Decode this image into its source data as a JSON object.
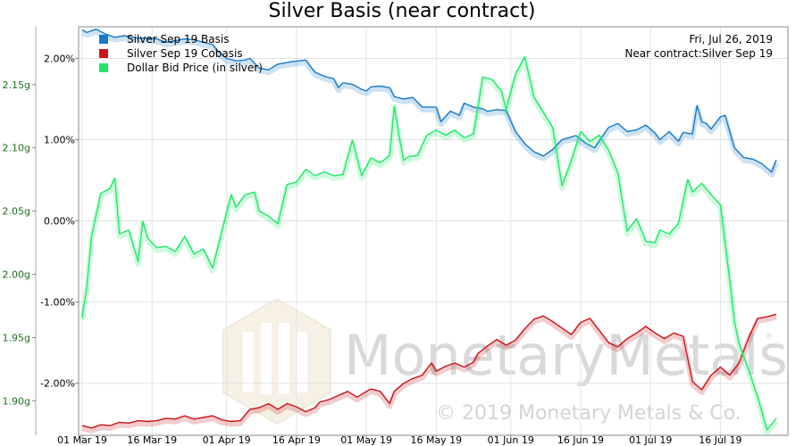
{
  "chart_data": {
    "type": "line",
    "title": "Silver Basis (near contract)",
    "info": {
      "date": "Fri, Jul 26, 2019",
      "contract": "Near contract:Silver Sep 19"
    },
    "legend_position": "top-left",
    "grid": true,
    "x_tick_labels": [
      "01 Mar 19",
      "16 Mar 19",
      "01 Apr 19",
      "16 Apr 19",
      "01 May 19",
      "16 May 19",
      "01 Jun 19",
      "16 Jun 19",
      "01 Jul 19",
      "16 Jul 19"
    ],
    "x_range_days": [
      0,
      149
    ],
    "y_left": {
      "ticks": [
        2.15,
        2.1,
        2.05,
        2.0,
        1.95,
        1.9
      ],
      "tick_labels": [
        "2.15g",
        "2.10g",
        "2.05g",
        "2.00g",
        "1.95g",
        "1.90g"
      ],
      "range": [
        1.8727,
        2.1957
      ]
    },
    "y_right": {
      "ticks": [
        2.0,
        1.0,
        0.0,
        -1.0,
        -2.0
      ],
      "tick_labels": [
        "2.00%",
        "1.00%",
        "0.00%",
        "-1.00%",
        "-2.00%"
      ],
      "range": [
        -2.64,
        2.39
      ]
    },
    "series": [
      {
        "name": "Silver Sep 19 Basis",
        "color": "#1a7ac9",
        "axis": "right",
        "points": [
          [
            0,
            2.35
          ],
          [
            1,
            2.32
          ],
          [
            3,
            2.36
          ],
          [
            5,
            2.3
          ],
          [
            7,
            2.26
          ],
          [
            9,
            2.28
          ],
          [
            11,
            2.26
          ],
          [
            12,
            2.25
          ],
          [
            14,
            2.25
          ],
          [
            16,
            2.24
          ],
          [
            18,
            2.2
          ],
          [
            20,
            2.22
          ],
          [
            22,
            2.24
          ],
          [
            24,
            2.23
          ],
          [
            26,
            2.2
          ],
          [
            28,
            2.17
          ],
          [
            29,
            2.1
          ],
          [
            31,
            2.0
          ],
          [
            33,
            1.97
          ],
          [
            35,
            1.98
          ],
          [
            36,
            2.0
          ],
          [
            38,
            1.88
          ],
          [
            40,
            1.86
          ],
          [
            42,
            1.93
          ],
          [
            45,
            1.96
          ],
          [
            48,
            1.98
          ],
          [
            49,
            1.9
          ],
          [
            50,
            1.83
          ],
          [
            52,
            1.78
          ],
          [
            54,
            1.75
          ],
          [
            55,
            1.64
          ],
          [
            56,
            1.7
          ],
          [
            58,
            1.68
          ],
          [
            60,
            1.62
          ],
          [
            61,
            1.6
          ],
          [
            62,
            1.65
          ],
          [
            64,
            1.66
          ],
          [
            66,
            1.64
          ],
          [
            67,
            1.53
          ],
          [
            69,
            1.5
          ],
          [
            71,
            1.52
          ],
          [
            73,
            1.4
          ],
          [
            76,
            1.4
          ],
          [
            77,
            1.22
          ],
          [
            79,
            1.35
          ],
          [
            81,
            1.3
          ],
          [
            82,
            1.45
          ],
          [
            84,
            1.4
          ],
          [
            86,
            1.38
          ],
          [
            87,
            1.35
          ],
          [
            89,
            1.37
          ],
          [
            91,
            1.36
          ],
          [
            93,
            1.1
          ],
          [
            95,
            0.95
          ],
          [
            97,
            0.85
          ],
          [
            99,
            0.8
          ],
          [
            101,
            0.88
          ],
          [
            103,
            1.0
          ],
          [
            106,
            1.05
          ],
          [
            108,
            0.96
          ],
          [
            110,
            0.9
          ],
          [
            113,
            1.15
          ],
          [
            115,
            1.2
          ],
          [
            117,
            1.1
          ],
          [
            119,
            1.12
          ],
          [
            121,
            1.18
          ],
          [
            123,
            1.08
          ],
          [
            124,
            1.0
          ],
          [
            126,
            1.1
          ],
          [
            128,
            0.98
          ],
          [
            129,
            1.09
          ],
          [
            131,
            1.07
          ],
          [
            132,
            1.42
          ],
          [
            133,
            1.22
          ],
          [
            134,
            1.2
          ],
          [
            135,
            1.13
          ],
          [
            137,
            1.28
          ],
          [
            138,
            1.3
          ],
          [
            140,
            0.9
          ],
          [
            142,
            0.78
          ],
          [
            144,
            0.76
          ],
          [
            146,
            0.7
          ],
          [
            148,
            0.6
          ],
          [
            149,
            0.75
          ]
        ]
      },
      {
        "name": "Silver Sep 19 Cobasis",
        "color": "#c8151b",
        "axis": "right",
        "points": [
          [
            0,
            -2.52
          ],
          [
            2,
            -2.55
          ],
          [
            4,
            -2.51
          ],
          [
            6,
            -2.52
          ],
          [
            8,
            -2.48
          ],
          [
            10,
            -2.49
          ],
          [
            12,
            -2.46
          ],
          [
            14,
            -2.47
          ],
          [
            16,
            -2.46
          ],
          [
            18,
            -2.43
          ],
          [
            20,
            -2.44
          ],
          [
            22,
            -2.4
          ],
          [
            24,
            -2.44
          ],
          [
            26,
            -2.42
          ],
          [
            28,
            -2.4
          ],
          [
            30,
            -2.45
          ],
          [
            32,
            -2.47
          ],
          [
            34,
            -2.46
          ],
          [
            36,
            -2.32
          ],
          [
            38,
            -2.3
          ],
          [
            40,
            -2.25
          ],
          [
            42,
            -2.32
          ],
          [
            44,
            -2.25
          ],
          [
            46,
            -2.29
          ],
          [
            48,
            -2.35
          ],
          [
            50,
            -2.3
          ],
          [
            51,
            -2.23
          ],
          [
            53,
            -2.2
          ],
          [
            55,
            -2.15
          ],
          [
            57,
            -2.1
          ],
          [
            59,
            -2.17
          ],
          [
            61,
            -2.1
          ],
          [
            62,
            -2.07
          ],
          [
            64,
            -2.1
          ],
          [
            66,
            -2.25
          ],
          [
            67,
            -2.1
          ],
          [
            69,
            -2.0
          ],
          [
            71,
            -1.94
          ],
          [
            73,
            -1.9
          ],
          [
            75,
            -1.75
          ],
          [
            76,
            -1.85
          ],
          [
            78,
            -1.79
          ],
          [
            80,
            -1.75
          ],
          [
            82,
            -1.8
          ],
          [
            84,
            -1.74
          ],
          [
            85,
            -1.63
          ],
          [
            87,
            -1.54
          ],
          [
            89,
            -1.46
          ],
          [
            91,
            -1.53
          ],
          [
            93,
            -1.47
          ],
          [
            95,
            -1.33
          ],
          [
            97,
            -1.21
          ],
          [
            99,
            -1.17
          ],
          [
            101,
            -1.24
          ],
          [
            103,
            -1.32
          ],
          [
            105,
            -1.4
          ],
          [
            107,
            -1.25
          ],
          [
            109,
            -1.2
          ],
          [
            111,
            -1.35
          ],
          [
            113,
            -1.5
          ],
          [
            115,
            -1.55
          ],
          [
            117,
            -1.45
          ],
          [
            119,
            -1.38
          ],
          [
            121,
            -1.3
          ],
          [
            123,
            -1.38
          ],
          [
            125,
            -1.45
          ],
          [
            127,
            -1.38
          ],
          [
            129,
            -1.42
          ],
          [
            131,
            -1.98
          ],
          [
            133,
            -2.08
          ],
          [
            135,
            -1.9
          ],
          [
            137,
            -1.8
          ],
          [
            139,
            -1.9
          ],
          [
            141,
            -1.75
          ],
          [
            143,
            -1.45
          ],
          [
            145,
            -1.2
          ],
          [
            147,
            -1.18
          ],
          [
            149,
            -1.15
          ]
        ]
      },
      {
        "name": "Dollar Bid Price (in silver)",
        "color": "#22e86a",
        "axis": "left",
        "points": [
          [
            0,
            1.966
          ],
          [
            1,
            1.99
          ],
          [
            2,
            2.03
          ],
          [
            4,
            2.064
          ],
          [
            6,
            2.068
          ],
          [
            7,
            2.076
          ],
          [
            8,
            2.032
          ],
          [
            10,
            2.035
          ],
          [
            12,
            2.01
          ],
          [
            13,
            2.042
          ],
          [
            14,
            2.029
          ],
          [
            16,
            2.021
          ],
          [
            18,
            2.022
          ],
          [
            20,
            2.018
          ],
          [
            22,
            2.03
          ],
          [
            24,
            2.016
          ],
          [
            26,
            2.02
          ],
          [
            28,
            2.005
          ],
          [
            30,
            2.034
          ],
          [
            32,
            2.063
          ],
          [
            33,
            2.053
          ],
          [
            35,
            2.063
          ],
          [
            37,
            2.065
          ],
          [
            38,
            2.05
          ],
          [
            40,
            2.046
          ],
          [
            42,
            2.04
          ],
          [
            44,
            2.071
          ],
          [
            46,
            2.073
          ],
          [
            48,
            2.083
          ],
          [
            50,
            2.078
          ],
          [
            52,
            2.081
          ],
          [
            54,
            2.078
          ],
          [
            56,
            2.079
          ],
          [
            58,
            2.106
          ],
          [
            60,
            2.078
          ],
          [
            62,
            2.092
          ],
          [
            64,
            2.088
          ],
          [
            66,
            2.094
          ],
          [
            67,
            2.133
          ],
          [
            68,
            2.11
          ],
          [
            69,
            2.09
          ],
          [
            70,
            2.093
          ],
          [
            72,
            2.094
          ],
          [
            74,
            2.11
          ],
          [
            76,
            2.114
          ],
          [
            78,
            2.11
          ],
          [
            80,
            2.114
          ],
          [
            82,
            2.108
          ],
          [
            84,
            2.111
          ],
          [
            86,
            2.156
          ],
          [
            88,
            2.154
          ],
          [
            90,
            2.145
          ],
          [
            91,
            2.13
          ],
          [
            93,
            2.158
          ],
          [
            95,
            2.172
          ],
          [
            97,
            2.14
          ],
          [
            99,
            2.128
          ],
          [
            101,
            2.116
          ],
          [
            103,
            2.07
          ],
          [
            105,
            2.09
          ],
          [
            107,
            2.113
          ],
          [
            109,
            2.105
          ],
          [
            111,
            2.11
          ],
          [
            113,
            2.098
          ],
          [
            115,
            2.08
          ],
          [
            117,
            2.034
          ],
          [
            119,
            2.044
          ],
          [
            121,
            2.026
          ],
          [
            123,
            2.025
          ],
          [
            124,
            2.035
          ],
          [
            126,
            2.032
          ],
          [
            128,
            2.04
          ],
          [
            130,
            2.075
          ],
          [
            131,
            2.065
          ],
          [
            133,
            2.072
          ],
          [
            135,
            2.063
          ],
          [
            137,
            2.055
          ],
          [
            139,
            1.995
          ],
          [
            140,
            1.963
          ],
          [
            141,
            1.945
          ],
          [
            143,
            1.925
          ],
          [
            145,
            1.903
          ],
          [
            147,
            1.877
          ],
          [
            149,
            1.886
          ]
        ]
      }
    ]
  },
  "watermark": {
    "brand": "MonetaryMetals",
    "copyright": "© 2019 Monetary Metals & Co.",
    "registered": "®"
  }
}
